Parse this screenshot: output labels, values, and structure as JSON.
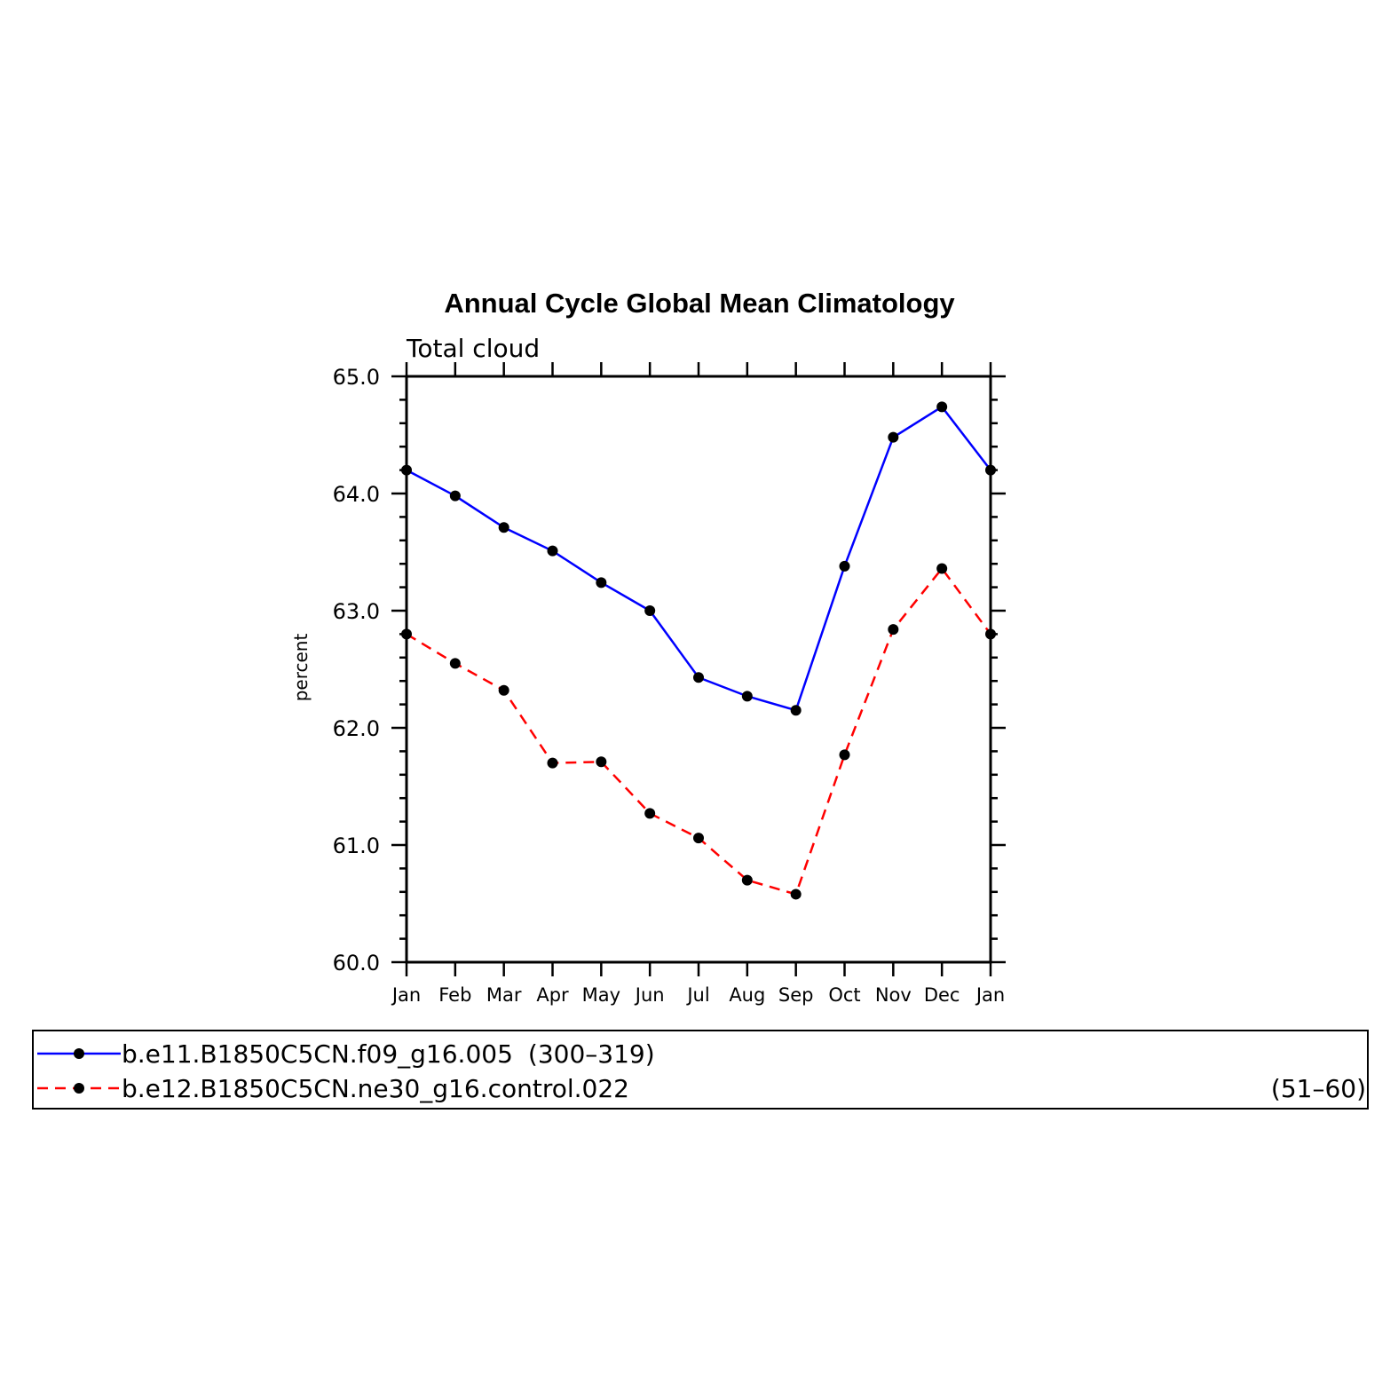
{
  "chart_data": {
    "type": "line",
    "title": "Annual Cycle Global Mean Climatology",
    "subtitle": "Total cloud",
    "xlabel": "",
    "ylabel": "percent",
    "categories": [
      "Jan",
      "Feb",
      "Mar",
      "Apr",
      "May",
      "Jun",
      "Jul",
      "Aug",
      "Sep",
      "Oct",
      "Nov",
      "Dec",
      "Jan"
    ],
    "ylim": [
      60.0,
      65.0
    ],
    "yticks": [
      "60.0",
      "61.0",
      "62.0",
      "63.0",
      "64.0",
      "65.0"
    ],
    "grid": false,
    "legend_position": "bottom",
    "series": [
      {
        "name": "b.e11.B1850C5CN.f09_g16.005",
        "years": "(300–319)",
        "color": "#0000ff",
        "dashed": false,
        "values": [
          64.2,
          63.98,
          63.71,
          63.51,
          63.24,
          63.0,
          62.43,
          62.27,
          62.15,
          63.38,
          64.48,
          64.74,
          64.2
        ]
      },
      {
        "name": "b.e12.B1850C5CN.ne30_g16.control.022",
        "years": "(51–60)",
        "color": "#ff0000",
        "dashed": true,
        "values": [
          62.8,
          62.55,
          62.32,
          61.7,
          61.71,
          61.27,
          61.06,
          60.7,
          60.58,
          61.77,
          62.84,
          63.36,
          62.8
        ]
      }
    ],
    "marker_color": "#000000"
  }
}
